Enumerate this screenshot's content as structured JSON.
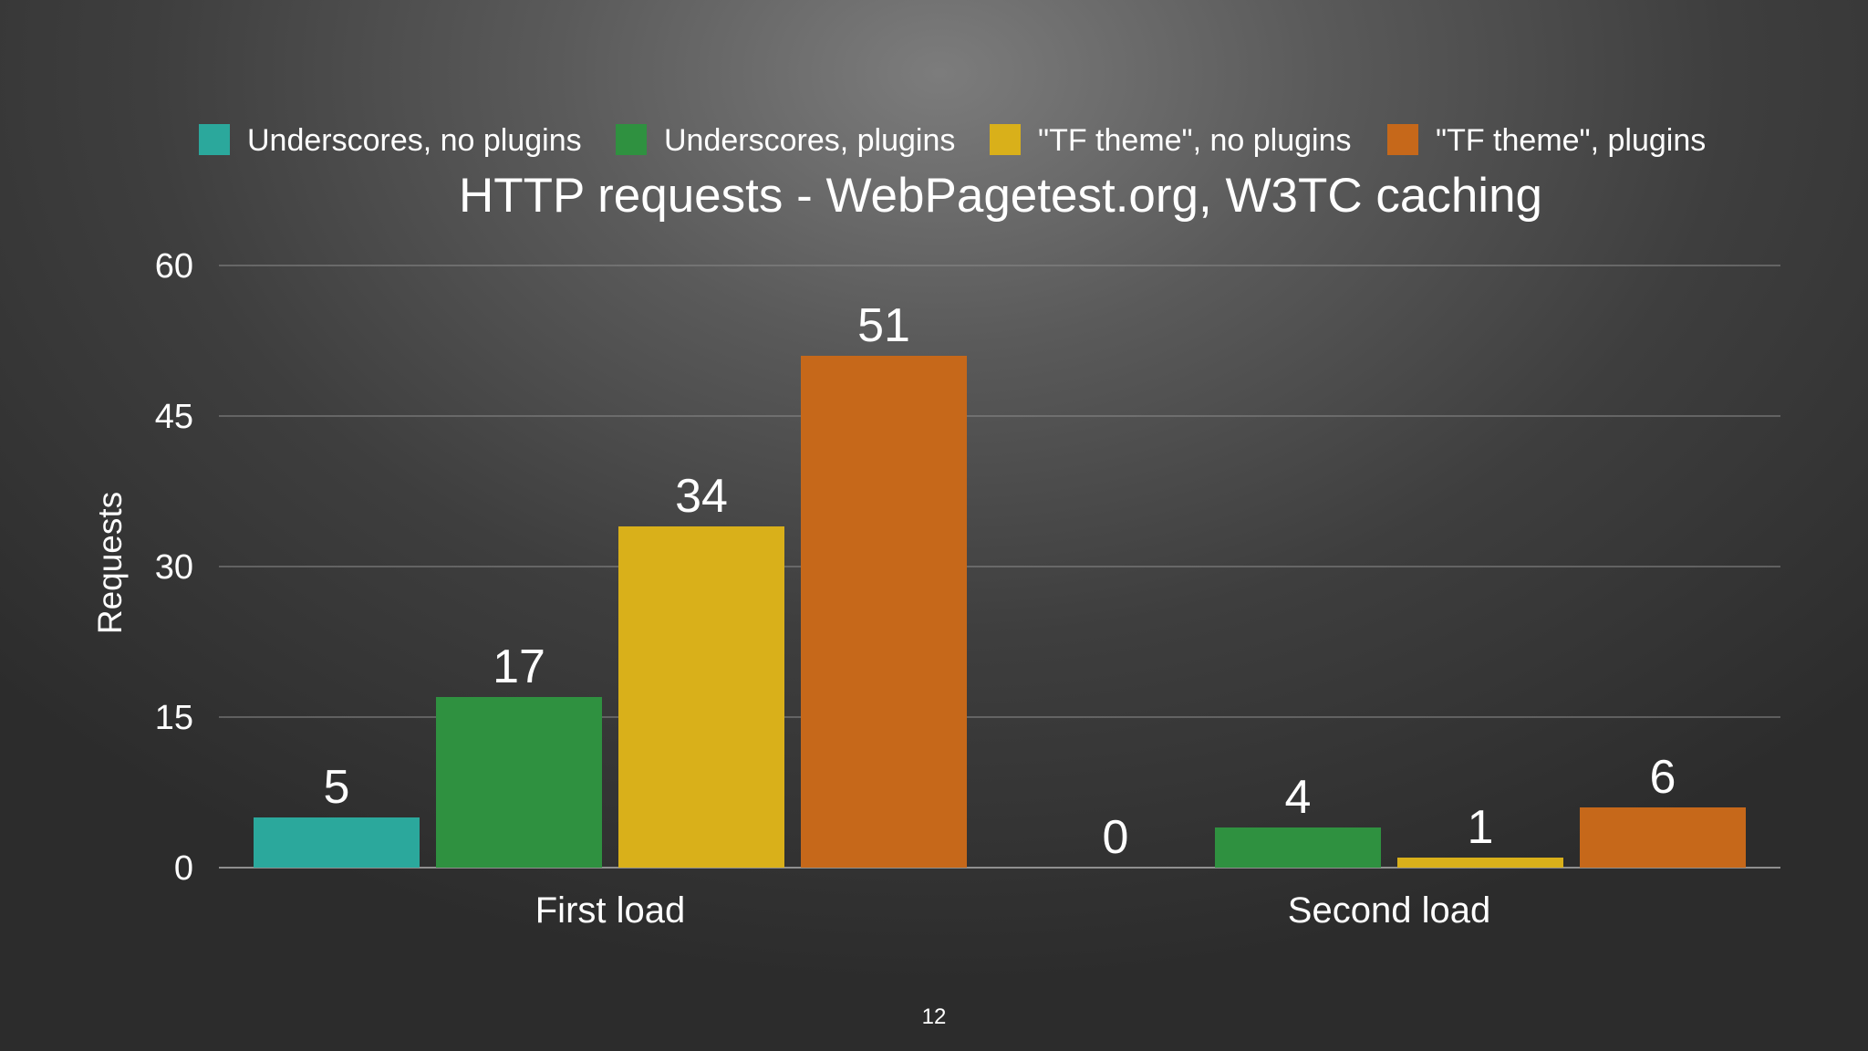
{
  "slide": {
    "page_number": "12"
  },
  "chart_data": {
    "type": "bar",
    "title": "HTTP requests - WebPagetest.org, W3TC caching",
    "ylabel": "Requests",
    "xlabel": "",
    "ylim": [
      0,
      60
    ],
    "yticks": [
      0,
      15,
      30,
      45,
      60
    ],
    "grid": true,
    "legend_position": "top",
    "categories": [
      "First load",
      "Second load"
    ],
    "series": [
      {
        "name": "Underscores, no plugins",
        "color": "#2ba89c",
        "values": [
          5,
          0
        ]
      },
      {
        "name": "Underscores, plugins",
        "color": "#2f9140",
        "values": [
          17,
          4
        ]
      },
      {
        "name": "\"TF theme\", no plugins",
        "color": "#d9b01a",
        "values": [
          34,
          1
        ]
      },
      {
        "name": "\"TF theme\", plugins",
        "color": "#c6681a",
        "values": [
          51,
          6
        ]
      }
    ]
  }
}
